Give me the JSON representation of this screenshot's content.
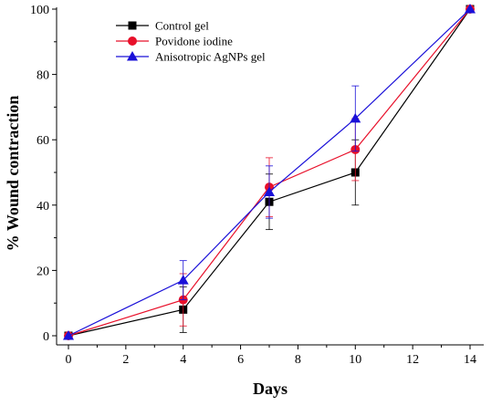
{
  "chart_data": {
    "type": "line",
    "xlabel": "Days",
    "ylabel": "% Wound contraction",
    "xlim": [
      0,
      14
    ],
    "ylim": [
      0,
      100
    ],
    "xticks": [
      0,
      2,
      4,
      6,
      8,
      10,
      12,
      14
    ],
    "yticks": [
      0,
      20,
      40,
      60,
      80,
      100
    ],
    "grid": false,
    "legend_position": "top-left",
    "x": [
      0,
      4,
      7,
      10,
      14
    ],
    "series": [
      {
        "name": "Control gel",
        "marker": "square",
        "color": "#000000",
        "values": [
          0,
          8,
          41,
          50,
          100
        ],
        "errors": [
          0,
          7,
          8.5,
          10,
          0
        ]
      },
      {
        "name": "Povidone iodine",
        "marker": "circle",
        "color": "#e8102a",
        "values": [
          0,
          11,
          45.5,
          57,
          100
        ],
        "errors": [
          0,
          8,
          9,
          9.5,
          0
        ]
      },
      {
        "name": "Anisotropic AgNPs gel",
        "marker": "triangle",
        "color": "#1a10d8",
        "values": [
          0,
          17,
          44,
          66.5,
          100
        ],
        "errors": [
          0,
          6,
          8,
          10,
          0
        ]
      }
    ]
  }
}
